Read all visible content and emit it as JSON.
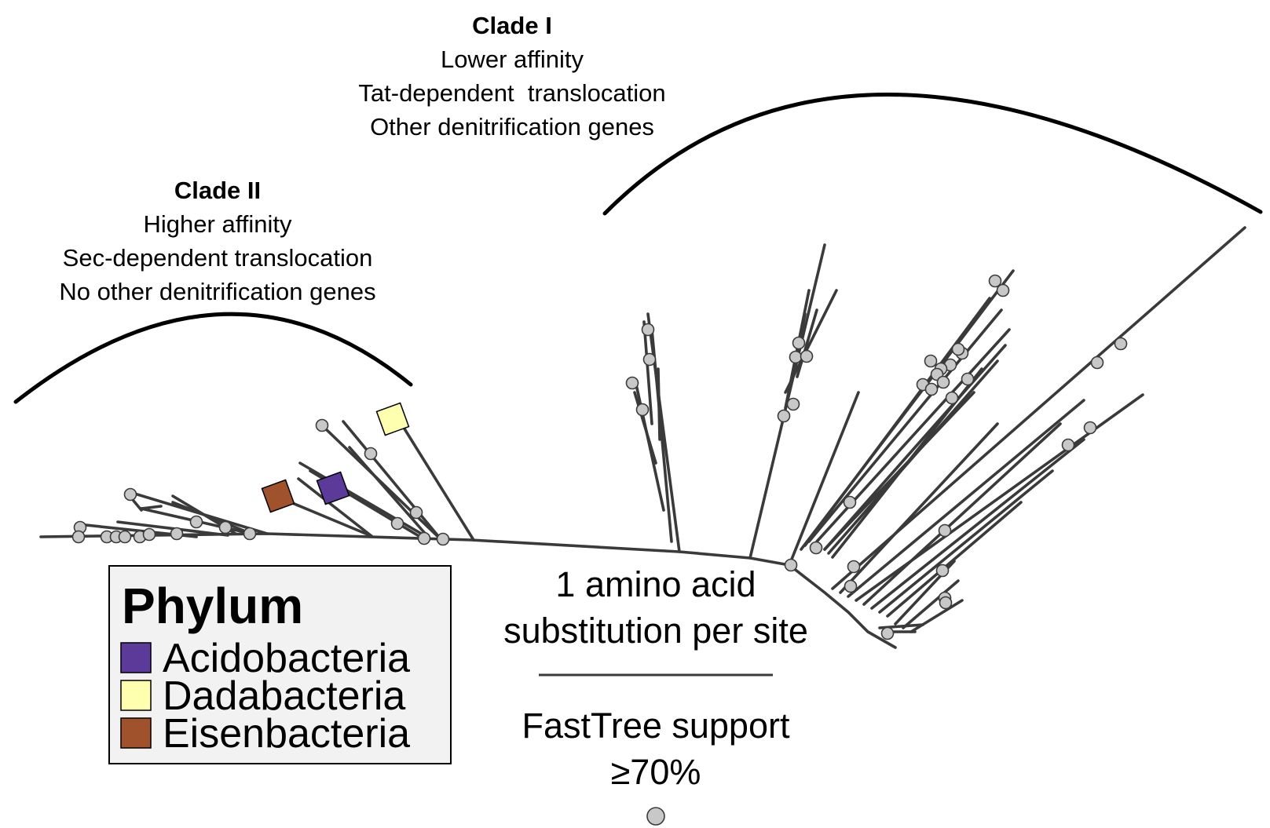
{
  "clades": {
    "clade1": {
      "title": "Clade I",
      "lines": [
        "Lower affinity",
        "Tat-dependent  translocation",
        "Other denitrification genes"
      ]
    },
    "clade2": {
      "title": "Clade II",
      "lines": [
        "Higher affinity",
        "Sec-dependent translocation",
        "No other denitrification genes"
      ]
    }
  },
  "scale": {
    "label_line1": "1 amino acid",
    "label_line2": "substitution per site"
  },
  "support": {
    "label_line1": "FastTree support",
    "label_line2": "≥70%"
  },
  "legend": {
    "title": "Phylum",
    "items": [
      {
        "label": "Acidobacteria",
        "color": "#5b3a9a"
      },
      {
        "label": "Dadabacteria",
        "color": "#ffffb0"
      },
      {
        "label": "Eisenbacteria",
        "color": "#a0522d"
      }
    ]
  },
  "colors": {
    "branch": "#3a3a3a",
    "support_node": "#c8c8c8",
    "legend_background": "#f2f2f2"
  }
}
